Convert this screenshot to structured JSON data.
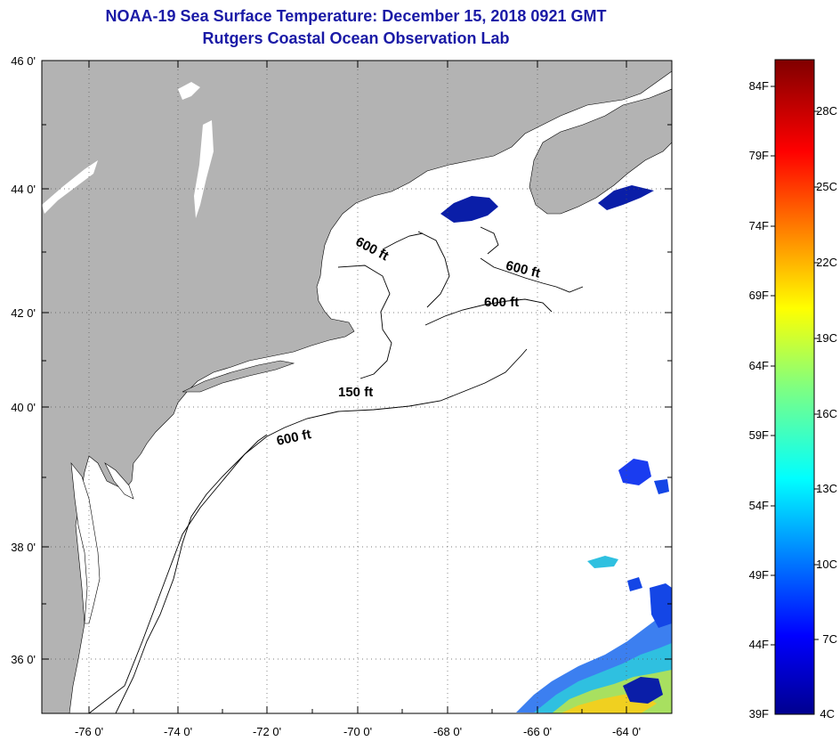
{
  "title": "NOAA-19 Sea Surface Temperature:  December 15, 2018 0921 GMT",
  "subtitle": "Rutgers Coastal Ocean Observation Lab",
  "lat_labels": [
    "46 0'",
    "44 0'",
    "42 0'",
    "40 0'",
    "38 0'",
    "36 0'"
  ],
  "lon_labels": [
    "-76 0'",
    "-74 0'",
    "-72 0'",
    "-70 0'",
    "-68 0'",
    "-66 0'",
    "-64 0'"
  ],
  "contour_labels": {
    "c1": "600 ft",
    "c2": "600 ft",
    "c3": "600 ft",
    "c4": "150 ft",
    "c5": "600 ft"
  },
  "colorbar": {
    "f_labels": [
      "84F",
      "79F",
      "74F",
      "69F",
      "64F",
      "59F",
      "54F",
      "49F",
      "44F",
      "39F"
    ],
    "c_labels": [
      "28C",
      "25C",
      "22C",
      "19C",
      "16C",
      "13C",
      "10C",
      "7C",
      "4C"
    ]
  },
  "colors": {
    "land": "#b3b3b3",
    "ocean": "#ffffff",
    "title": "#1a1aa6"
  }
}
